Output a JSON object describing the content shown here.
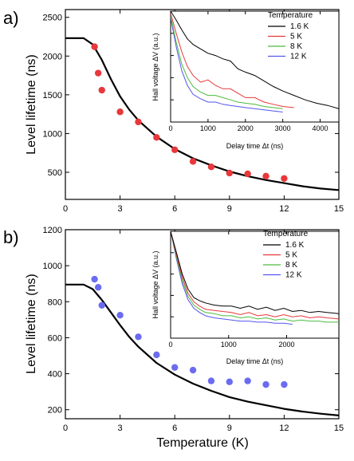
{
  "chart_data": [
    {
      "panel_label": "a)",
      "type": "scatter",
      "xlabel": "",
      "ylabel": "Level lifetime (ns)",
      "xlim": [
        0,
        15
      ],
      "ylim": [
        150,
        2600
      ],
      "x_ticks": [
        "0",
        "3",
        "6",
        "9",
        "12",
        "15"
      ],
      "y_ticks": [
        "500",
        "1000",
        "1500",
        "2000",
        "2500"
      ],
      "marker_color": "#e8383b",
      "points": {
        "x": [
          1.6,
          1.8,
          2.0,
          3.0,
          4.0,
          5.0,
          6.0,
          7.0,
          8.0,
          9.0,
          10.0,
          11.0,
          12.0
        ],
        "y": [
          2120,
          1780,
          1560,
          1280,
          1150,
          950,
          790,
          640,
          570,
          490,
          480,
          450,
          420
        ]
      },
      "fit_curve": {
        "x": [
          0,
          1,
          1.5,
          2,
          2.5,
          3,
          3.5,
          4,
          5,
          6,
          7,
          8,
          9,
          10,
          11,
          12,
          13,
          14,
          15
        ],
        "y": [
          2230,
          2230,
          2150,
          1950,
          1700,
          1480,
          1310,
          1170,
          960,
          800,
          680,
          590,
          510,
          450,
          400,
          360,
          320,
          290,
          270
        ]
      },
      "inset": {
        "xlabel": "Delay time Δt (ns)",
        "ylabel": "Hall voltage ΔV (a.u.)",
        "x_ticks": [
          "0",
          "1000",
          "2000",
          "3000",
          "4000"
        ],
        "xlim": [
          0,
          4500
        ],
        "legend_title": "Temperature",
        "series": [
          {
            "name": "1.6 K",
            "color": "#000000",
            "x": [
              0,
              150,
              300,
              450,
              600,
              800,
              1000,
              1200,
              1400,
              1600,
              1800,
              2000,
              2250,
              2500,
              2750,
              3000,
              3300,
              3600,
              3900,
              4200,
              4500
            ],
            "y": [
              1.0,
              0.92,
              0.83,
              0.75,
              0.7,
              0.66,
              0.62,
              0.6,
              0.57,
              0.55,
              0.48,
              0.45,
              0.42,
              0.37,
              0.32,
              0.28,
              0.24,
              0.2,
              0.17,
              0.15,
              0.12
            ]
          },
          {
            "name": "5 K",
            "color": "#e8383b",
            "x": [
              0,
              150,
              300,
              450,
              600,
              800,
              1000,
              1200,
              1400,
              1600,
              1800,
              2000,
              2250,
              2500,
              2750,
              3000,
              3300
            ],
            "y": [
              0.98,
              0.8,
              0.63,
              0.5,
              0.42,
              0.36,
              0.38,
              0.33,
              0.3,
              0.3,
              0.26,
              0.22,
              0.22,
              0.18,
              0.16,
              0.14,
              0.13
            ]
          },
          {
            "name": "8 K",
            "color": "#4cbb3e",
            "x": [
              0,
              150,
              300,
              450,
              600,
              800,
              1000,
              1200,
              1400,
              1600,
              1800,
              2000,
              2250,
              2500,
              2750,
              3000
            ],
            "y": [
              0.96,
              0.72,
              0.52,
              0.4,
              0.32,
              0.27,
              0.24,
              0.24,
              0.22,
              0.2,
              0.18,
              0.17,
              0.16,
              0.14,
              0.13,
              0.12
            ]
          },
          {
            "name": "12 K",
            "color": "#5555ee",
            "x": [
              0,
              150,
              300,
              450,
              600,
              800,
              1000,
              1200,
              1400,
              1600,
              1800,
              2000,
              2250,
              2500,
              2750,
              3000
            ],
            "y": [
              0.94,
              0.68,
              0.46,
              0.33,
              0.25,
              0.21,
              0.18,
              0.18,
              0.16,
              0.15,
              0.14,
              0.13,
              0.12,
              0.11,
              0.1,
              0.09
            ]
          }
        ]
      }
    },
    {
      "panel_label": "b)",
      "type": "scatter",
      "xlabel": "Temperature (K)",
      "ylabel": "Level lifetime (ns)",
      "xlim": [
        0,
        15
      ],
      "ylim": [
        150,
        1200
      ],
      "x_ticks": [
        "0",
        "3",
        "6",
        "9",
        "12",
        "15"
      ],
      "y_ticks": [
        "200",
        "400",
        "600",
        "800",
        "1000",
        "1200"
      ],
      "marker_color": "#6b6bf0",
      "points": {
        "x": [
          1.6,
          1.8,
          2.0,
          3.0,
          4.0,
          5.0,
          6.0,
          7.0,
          8.0,
          9.0,
          10.0,
          11.0,
          12.0
        ],
        "y": [
          925,
          880,
          780,
          725,
          605,
          505,
          435,
          420,
          360,
          355,
          360,
          340,
          340
        ]
      },
      "fit_curve": {
        "x": [
          0,
          1,
          1.5,
          2,
          2.5,
          3,
          3.5,
          4,
          5,
          6,
          7,
          8,
          9,
          10,
          11,
          12,
          13,
          14,
          15
        ],
        "y": [
          895,
          895,
          870,
          810,
          740,
          670,
          605,
          550,
          460,
          395,
          345,
          305,
          270,
          245,
          225,
          205,
          190,
          178,
          168
        ]
      },
      "inset": {
        "xlabel": "Delay time Δt (ns)",
        "ylabel": "Hall voltage ΔV (a.u.)",
        "x_ticks": [
          "0",
          "1000",
          "2000"
        ],
        "xlim": [
          0,
          2900
        ],
        "legend_title": "Temperature",
        "series": [
          {
            "name": "1.6 K",
            "color": "#000000",
            "x": [
              0,
              100,
              200,
              300,
              400,
              500,
              600,
              750,
              900,
              1050,
              1200,
              1350,
              1500,
              1650,
              1800,
              1950,
              2100,
              2250,
              2400,
              2550,
              2700,
              2900
            ],
            "y": [
              1.0,
              0.8,
              0.6,
              0.46,
              0.38,
              0.35,
              0.33,
              0.31,
              0.3,
              0.3,
              0.28,
              0.3,
              0.27,
              0.29,
              0.26,
              0.28,
              0.25,
              0.26,
              0.24,
              0.25,
              0.24,
              0.23
            ]
          },
          {
            "name": "5 K",
            "color": "#e8383b",
            "x": [
              0,
              100,
              200,
              300,
              400,
              500,
              600,
              750,
              900,
              1050,
              1200,
              1350,
              1500,
              1650,
              1800,
              1950,
              2100,
              2250,
              2400,
              2550,
              2700,
              2900
            ],
            "y": [
              1.0,
              0.78,
              0.57,
              0.42,
              0.34,
              0.3,
              0.27,
              0.26,
              0.25,
              0.24,
              0.22,
              0.24,
              0.21,
              0.22,
              0.2,
              0.22,
              0.2,
              0.21,
              0.19,
              0.2,
              0.19,
              0.18
            ]
          },
          {
            "name": "8 K",
            "color": "#4cbb3e",
            "x": [
              0,
              100,
              200,
              300,
              400,
              500,
              600,
              750,
              900,
              1050,
              1200,
              1350,
              1500,
              1650,
              1800,
              1950,
              2100,
              2250,
              2400,
              2550,
              2700,
              2900
            ],
            "y": [
              1.0,
              0.76,
              0.54,
              0.39,
              0.31,
              0.27,
              0.24,
              0.23,
              0.21,
              0.21,
              0.19,
              0.2,
              0.18,
              0.19,
              0.17,
              0.18,
              0.16,
              0.17,
              0.16,
              0.16,
              0.15,
              0.15
            ]
          },
          {
            "name": "12 K",
            "color": "#5555ee",
            "x": [
              0,
              100,
              200,
              300,
              400,
              500,
              600,
              750,
              900,
              1050,
              1200,
              1350,
              1500,
              1650,
              1800,
              1950,
              2100
            ],
            "y": [
              1.0,
              0.74,
              0.51,
              0.36,
              0.28,
              0.24,
              0.21,
              0.19,
              0.18,
              0.17,
              0.16,
              0.16,
              0.15,
              0.15,
              0.14,
              0.14,
              0.13
            ]
          }
        ]
      }
    }
  ]
}
